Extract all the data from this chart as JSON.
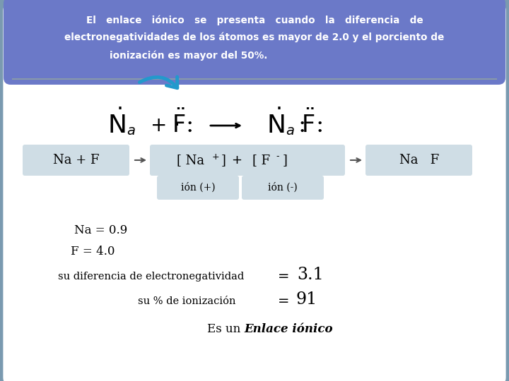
{
  "bg_color": "#7a9ab0",
  "inner_bg": "#ffffff",
  "header_bg": "#6b79c8",
  "header_text_color": "#ffffff",
  "header_line1": "El   enlace   iónico   se   presenta   cuando   la   diferencia   de",
  "header_line2": "electronegatividades de los átomos es mayor de 2.0 y el porciento de",
  "header_line3": "ionización es mayor del 50%.",
  "light_box_color": "#cfdde5",
  "sep_color": "#8899aa",
  "arrow_color": "#2299cc",
  "text_color": "#000000",
  "ion_pos": "ión (+)",
  "ion_neg": "ión (-)"
}
